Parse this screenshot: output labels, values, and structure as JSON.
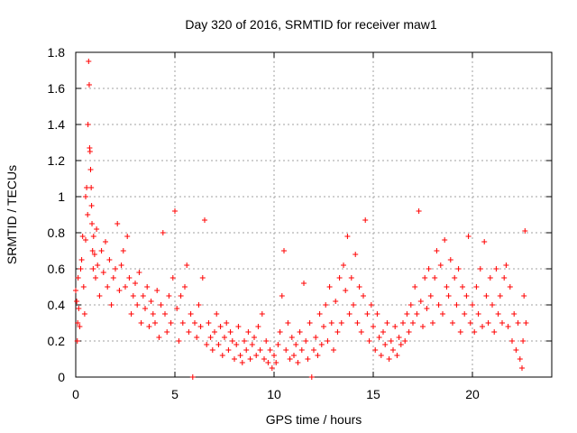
{
  "chart_data": {
    "type": "scatter",
    "title": "Day 320 of 2016, SRMTID for receiver maw1",
    "xlabel": "GPS time / hours",
    "ylabel": "SRMTID / TECUs",
    "xlim": [
      0,
      24
    ],
    "ylim": [
      0,
      1.8
    ],
    "xticks": [
      0,
      5,
      10,
      15,
      20
    ],
    "xtick_labels": [
      "0",
      "5",
      "10",
      "15",
      "20"
    ],
    "yticks": [
      0,
      0.2,
      0.4,
      0.6,
      0.8,
      1.0,
      1.2,
      1.4,
      1.6,
      1.8
    ],
    "ytick_labels": [
      "0",
      "0.2",
      "0.4",
      "0.6",
      "0.8",
      "1",
      "1.2",
      "1.4",
      "1.6",
      "1.8"
    ],
    "grid": true,
    "marker": "+",
    "color": "#ff0000",
    "series": [
      {
        "name": "SRMTID",
        "points": [
          [
            0.0,
            0.48
          ],
          [
            0.05,
            0.42
          ],
          [
            0.08,
            0.2
          ],
          [
            0.1,
            0.3
          ],
          [
            0.12,
            0.55
          ],
          [
            0.15,
            0.38
          ],
          [
            0.2,
            0.28
          ],
          [
            0.25,
            0.6
          ],
          [
            0.3,
            0.65
          ],
          [
            0.35,
            0.78
          ],
          [
            0.4,
            0.5
          ],
          [
            0.45,
            0.35
          ],
          [
            0.5,
            0.76
          ],
          [
            0.5,
            1.0
          ],
          [
            0.55,
            1.05
          ],
          [
            0.6,
            0.9
          ],
          [
            0.62,
            1.4
          ],
          [
            0.65,
            1.75
          ],
          [
            0.68,
            1.62
          ],
          [
            0.7,
            1.27
          ],
          [
            0.72,
            1.25
          ],
          [
            0.75,
            1.15
          ],
          [
            0.78,
            1.05
          ],
          [
            0.8,
            0.95
          ],
          [
            0.82,
            0.85
          ],
          [
            0.85,
            0.7
          ],
          [
            0.88,
            0.6
          ],
          [
            0.9,
            0.78
          ],
          [
            0.95,
            0.68
          ],
          [
            1.0,
            0.55
          ],
          [
            1.05,
            0.82
          ],
          [
            1.1,
            0.62
          ],
          [
            1.2,
            0.45
          ],
          [
            1.3,
            0.7
          ],
          [
            1.4,
            0.58
          ],
          [
            1.5,
            0.75
          ],
          [
            1.6,
            0.5
          ],
          [
            1.7,
            0.65
          ],
          [
            1.8,
            0.4
          ],
          [
            1.9,
            0.55
          ],
          [
            2.0,
            0.6
          ],
          [
            2.1,
            0.85
          ],
          [
            2.2,
            0.48
          ],
          [
            2.3,
            0.62
          ],
          [
            2.4,
            0.7
          ],
          [
            2.5,
            0.5
          ],
          [
            2.6,
            0.78
          ],
          [
            2.7,
            0.55
          ],
          [
            2.8,
            0.35
          ],
          [
            2.9,
            0.45
          ],
          [
            3.0,
            0.52
          ],
          [
            3.1,
            0.4
          ],
          [
            3.2,
            0.58
          ],
          [
            3.3,
            0.3
          ],
          [
            3.4,
            0.45
          ],
          [
            3.5,
            0.38
          ],
          [
            3.6,
            0.5
          ],
          [
            3.7,
            0.28
          ],
          [
            3.8,
            0.42
          ],
          [
            3.9,
            0.35
          ],
          [
            4.0,
            0.3
          ],
          [
            4.1,
            0.48
          ],
          [
            4.2,
            0.22
          ],
          [
            4.3,
            0.4
          ],
          [
            4.4,
            0.8
          ],
          [
            4.5,
            0.35
          ],
          [
            4.6,
            0.25
          ],
          [
            4.7,
            0.45
          ],
          [
            4.8,
            0.3
          ],
          [
            4.9,
            0.55
          ],
          [
            5.0,
            0.92
          ],
          [
            5.1,
            0.38
          ],
          [
            5.2,
            0.2
          ],
          [
            5.3,
            0.45
          ],
          [
            5.4,
            0.3
          ],
          [
            5.5,
            0.5
          ],
          [
            5.6,
            0.62
          ],
          [
            5.7,
            0.25
          ],
          [
            5.8,
            0.35
          ],
          [
            5.9,
            0.0
          ],
          [
            6.0,
            0.3
          ],
          [
            6.1,
            0.22
          ],
          [
            6.2,
            0.4
          ],
          [
            6.3,
            0.28
          ],
          [
            6.4,
            0.55
          ],
          [
            6.5,
            0.87
          ],
          [
            6.6,
            0.18
          ],
          [
            6.7,
            0.3
          ],
          [
            6.8,
            0.22
          ],
          [
            6.9,
            0.15
          ],
          [
            7.0,
            0.25
          ],
          [
            7.1,
            0.35
          ],
          [
            7.2,
            0.18
          ],
          [
            7.3,
            0.28
          ],
          [
            7.4,
            0.12
          ],
          [
            7.5,
            0.22
          ],
          [
            7.6,
            0.3
          ],
          [
            7.7,
            0.15
          ],
          [
            7.8,
            0.25
          ],
          [
            7.9,
            0.2
          ],
          [
            8.0,
            0.1
          ],
          [
            8.1,
            0.18
          ],
          [
            8.2,
            0.28
          ],
          [
            8.3,
            0.12
          ],
          [
            8.4,
            0.08
          ],
          [
            8.5,
            0.2
          ],
          [
            8.6,
            0.15
          ],
          [
            8.7,
            0.25
          ],
          [
            8.8,
            0.1
          ],
          [
            8.9,
            0.18
          ],
          [
            9.0,
            0.22
          ],
          [
            9.1,
            0.12
          ],
          [
            9.2,
            0.28
          ],
          [
            9.3,
            0.15
          ],
          [
            9.4,
            0.35
          ],
          [
            9.5,
            0.1
          ],
          [
            9.6,
            0.2
          ],
          [
            9.7,
            0.08
          ],
          [
            9.8,
            0.15
          ],
          [
            9.9,
            0.05
          ],
          [
            10.0,
            0.12
          ],
          [
            10.1,
            0.08
          ],
          [
            10.2,
            0.18
          ],
          [
            10.3,
            0.25
          ],
          [
            10.4,
            0.45
          ],
          [
            10.5,
            0.7
          ],
          [
            10.6,
            0.15
          ],
          [
            10.7,
            0.3
          ],
          [
            10.8,
            0.1
          ],
          [
            10.9,
            0.22
          ],
          [
            11.0,
            0.12
          ],
          [
            11.1,
            0.18
          ],
          [
            11.2,
            0.08
          ],
          [
            11.3,
            0.25
          ],
          [
            11.4,
            0.15
          ],
          [
            11.5,
            0.52
          ],
          [
            11.6,
            0.2
          ],
          [
            11.7,
            0.1
          ],
          [
            11.8,
            0.3
          ],
          [
            11.9,
            0.0
          ],
          [
            12.0,
            0.15
          ],
          [
            12.1,
            0.22
          ],
          [
            12.2,
            0.12
          ],
          [
            12.3,
            0.35
          ],
          [
            12.4,
            0.18
          ],
          [
            12.5,
            0.28
          ],
          [
            12.6,
            0.4
          ],
          [
            12.7,
            0.2
          ],
          [
            12.8,
            0.5
          ],
          [
            12.9,
            0.3
          ],
          [
            13.0,
            0.15
          ],
          [
            13.1,
            0.42
          ],
          [
            13.2,
            0.25
          ],
          [
            13.3,
            0.55
          ],
          [
            13.4,
            0.3
          ],
          [
            13.5,
            0.62
          ],
          [
            13.6,
            0.48
          ],
          [
            13.7,
            0.78
          ],
          [
            13.8,
            0.35
          ],
          [
            13.9,
            0.55
          ],
          [
            14.0,
            0.4
          ],
          [
            14.1,
            0.68
          ],
          [
            14.2,
            0.3
          ],
          [
            14.3,
            0.5
          ],
          [
            14.4,
            0.25
          ],
          [
            14.5,
            0.45
          ],
          [
            14.6,
            0.87
          ],
          [
            14.7,
            0.35
          ],
          [
            14.8,
            0.2
          ],
          [
            14.9,
            0.4
          ],
          [
            15.0,
            0.28
          ],
          [
            15.1,
            0.15
          ],
          [
            15.2,
            0.35
          ],
          [
            15.3,
            0.22
          ],
          [
            15.4,
            0.12
          ],
          [
            15.5,
            0.25
          ],
          [
            15.6,
            0.18
          ],
          [
            15.7,
            0.3
          ],
          [
            15.8,
            0.1
          ],
          [
            15.9,
            0.2
          ],
          [
            16.0,
            0.15
          ],
          [
            16.1,
            0.28
          ],
          [
            16.2,
            0.12
          ],
          [
            16.3,
            0.22
          ],
          [
            16.4,
            0.18
          ],
          [
            16.5,
            0.3
          ],
          [
            16.6,
            0.2
          ],
          [
            16.7,
            0.35
          ],
          [
            16.8,
            0.25
          ],
          [
            16.9,
            0.4
          ],
          [
            17.0,
            0.3
          ],
          [
            17.1,
            0.5
          ],
          [
            17.2,
            0.35
          ],
          [
            17.3,
            0.92
          ],
          [
            17.4,
            0.42
          ],
          [
            17.5,
            0.28
          ],
          [
            17.6,
            0.55
          ],
          [
            17.7,
            0.38
          ],
          [
            17.8,
            0.6
          ],
          [
            17.9,
            0.45
          ],
          [
            18.0,
            0.3
          ],
          [
            18.1,
            0.55
          ],
          [
            18.2,
            0.7
          ],
          [
            18.3,
            0.4
          ],
          [
            18.4,
            0.62
          ],
          [
            18.5,
            0.35
          ],
          [
            18.6,
            0.76
          ],
          [
            18.7,
            0.5
          ],
          [
            18.8,
            0.45
          ],
          [
            18.9,
            0.65
          ],
          [
            19.0,
            0.3
          ],
          [
            19.1,
            0.55
          ],
          [
            19.2,
            0.4
          ],
          [
            19.3,
            0.6
          ],
          [
            19.4,
            0.25
          ],
          [
            19.5,
            0.5
          ],
          [
            19.6,
            0.35
          ],
          [
            19.7,
            0.45
          ],
          [
            19.8,
            0.78
          ],
          [
            19.9,
            0.3
          ],
          [
            20.0,
            0.4
          ],
          [
            20.1,
            0.25
          ],
          [
            20.2,
            0.5
          ],
          [
            20.3,
            0.35
          ],
          [
            20.4,
            0.6
          ],
          [
            20.5,
            0.28
          ],
          [
            20.6,
            0.75
          ],
          [
            20.7,
            0.45
          ],
          [
            20.8,
            0.3
          ],
          [
            20.9,
            0.55
          ],
          [
            21.0,
            0.4
          ],
          [
            21.1,
            0.25
          ],
          [
            21.2,
            0.6
          ],
          [
            21.3,
            0.35
          ],
          [
            21.4,
            0.45
          ],
          [
            21.5,
            0.3
          ],
          [
            21.6,
            0.55
          ],
          [
            21.7,
            0.62
          ],
          [
            21.8,
            0.28
          ],
          [
            21.9,
            0.5
          ],
          [
            22.0,
            0.2
          ],
          [
            22.1,
            0.35
          ],
          [
            22.2,
            0.15
          ],
          [
            22.3,
            0.3
          ],
          [
            22.4,
            0.1
          ],
          [
            22.5,
            0.05
          ],
          [
            22.55,
            0.2
          ],
          [
            22.6,
            0.45
          ],
          [
            22.65,
            0.81
          ],
          [
            22.7,
            0.3
          ]
        ]
      }
    ]
  }
}
